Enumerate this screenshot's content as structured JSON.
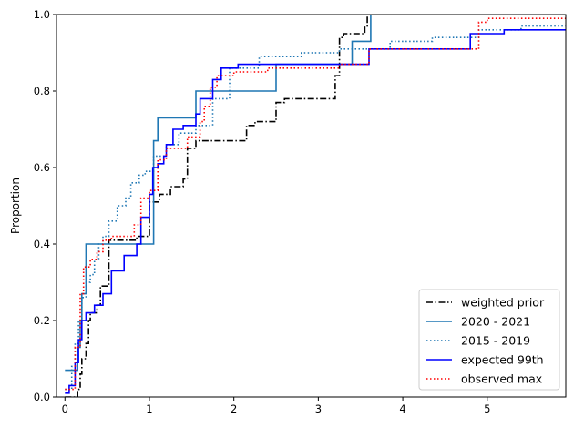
{
  "chart_data": {
    "type": "line",
    "ylabel": "Proportion",
    "xlabel": "",
    "xlim": [
      -0.1,
      5.93
    ],
    "ylim": [
      0,
      1
    ],
    "x_ticks": [
      0,
      1,
      2,
      3,
      4,
      5
    ],
    "y_ticks": [
      0.0,
      0.2,
      0.4,
      0.6,
      0.8,
      1.0
    ],
    "grid": false,
    "legend_position": "lower-right",
    "series": [
      {
        "name": "weighted prior",
        "color": "#000000",
        "dash": "dashdot",
        "steps": [
          [
            0.0,
            0.0
          ],
          [
            0.15,
            0.02
          ],
          [
            0.18,
            0.06
          ],
          [
            0.2,
            0.1
          ],
          [
            0.25,
            0.14
          ],
          [
            0.28,
            0.2
          ],
          [
            0.3,
            0.22
          ],
          [
            0.38,
            0.24
          ],
          [
            0.42,
            0.29
          ],
          [
            0.52,
            0.33
          ],
          [
            0.52,
            0.41
          ],
          [
            0.62,
            0.41
          ],
          [
            0.85,
            0.42
          ],
          [
            1.0,
            0.51
          ],
          [
            1.12,
            0.53
          ],
          [
            1.25,
            0.55
          ],
          [
            1.4,
            0.57
          ],
          [
            1.45,
            0.65
          ],
          [
            1.55,
            0.67
          ],
          [
            2.15,
            0.71
          ],
          [
            2.25,
            0.72
          ],
          [
            2.5,
            0.77
          ],
          [
            2.6,
            0.78
          ],
          [
            3.2,
            0.84
          ],
          [
            3.25,
            0.94
          ],
          [
            3.3,
            0.95
          ],
          [
            3.55,
            0.97
          ],
          [
            3.58,
            1.0
          ]
        ],
        "end_x": 3.58
      },
      {
        "name": "2020 - 2021",
        "color": "#1f77b4",
        "dash": "solid",
        "steps": [
          [
            0.0,
            0.07
          ],
          [
            0.15,
            0.13
          ],
          [
            0.18,
            0.2
          ],
          [
            0.2,
            0.27
          ],
          [
            0.25,
            0.4
          ],
          [
            1.05,
            0.67
          ],
          [
            1.1,
            0.73
          ],
          [
            1.55,
            0.8
          ],
          [
            2.5,
            0.87
          ],
          [
            3.4,
            0.93
          ],
          [
            3.62,
            1.0
          ]
        ],
        "end_x": 3.62
      },
      {
        "name": "2015 - 2019",
        "color": "#1f77b4",
        "dash": "dotted",
        "steps": [
          [
            0.0,
            0.02
          ],
          [
            0.08,
            0.08
          ],
          [
            0.12,
            0.14
          ],
          [
            0.16,
            0.2
          ],
          [
            0.2,
            0.26
          ],
          [
            0.25,
            0.3
          ],
          [
            0.3,
            0.32
          ],
          [
            0.35,
            0.36
          ],
          [
            0.4,
            0.4
          ],
          [
            0.45,
            0.42
          ],
          [
            0.52,
            0.46
          ],
          [
            0.62,
            0.5
          ],
          [
            0.72,
            0.52
          ],
          [
            0.78,
            0.56
          ],
          [
            0.88,
            0.58
          ],
          [
            0.95,
            0.59
          ],
          [
            1.05,
            0.63
          ],
          [
            1.2,
            0.66
          ],
          [
            1.35,
            0.69
          ],
          [
            1.55,
            0.71
          ],
          [
            1.75,
            0.78
          ],
          [
            1.95,
            0.86
          ],
          [
            2.3,
            0.89
          ],
          [
            2.8,
            0.9
          ],
          [
            3.25,
            0.91
          ],
          [
            3.85,
            0.93
          ],
          [
            4.35,
            0.94
          ],
          [
            4.9,
            0.96
          ],
          [
            5.4,
            0.97
          ],
          [
            5.93,
            0.97
          ]
        ],
        "end_x": 5.93
      },
      {
        "name": "expected 99th",
        "color": "#0000ff",
        "dash": "solid",
        "steps": [
          [
            0.0,
            0.01
          ],
          [
            0.05,
            0.03
          ],
          [
            0.12,
            0.09
          ],
          [
            0.16,
            0.15
          ],
          [
            0.2,
            0.2
          ],
          [
            0.25,
            0.22
          ],
          [
            0.35,
            0.24
          ],
          [
            0.45,
            0.27
          ],
          [
            0.55,
            0.33
          ],
          [
            0.7,
            0.37
          ],
          [
            0.85,
            0.4
          ],
          [
            0.9,
            0.47
          ],
          [
            1.0,
            0.53
          ],
          [
            1.04,
            0.6
          ],
          [
            1.1,
            0.61
          ],
          [
            1.17,
            0.63
          ],
          [
            1.2,
            0.66
          ],
          [
            1.28,
            0.7
          ],
          [
            1.4,
            0.71
          ],
          [
            1.55,
            0.74
          ],
          [
            1.6,
            0.78
          ],
          [
            1.75,
            0.83
          ],
          [
            1.85,
            0.86
          ],
          [
            2.05,
            0.87
          ],
          [
            2.5,
            0.87
          ],
          [
            3.6,
            0.91
          ],
          [
            4.8,
            0.95
          ],
          [
            5.2,
            0.96
          ],
          [
            5.93,
            0.96
          ]
        ],
        "end_x": 5.93
      },
      {
        "name": "observed max",
        "color": "#ff0000",
        "dash": "dotted",
        "steps": [
          [
            0.0,
            0.02
          ],
          [
            0.12,
            0.13
          ],
          [
            0.18,
            0.27
          ],
          [
            0.22,
            0.34
          ],
          [
            0.3,
            0.36
          ],
          [
            0.38,
            0.38
          ],
          [
            0.45,
            0.41
          ],
          [
            0.55,
            0.42
          ],
          [
            0.82,
            0.45
          ],
          [
            0.9,
            0.52
          ],
          [
            1.0,
            0.54
          ],
          [
            1.1,
            0.62
          ],
          [
            1.2,
            0.65
          ],
          [
            1.45,
            0.68
          ],
          [
            1.6,
            0.72
          ],
          [
            1.65,
            0.76
          ],
          [
            1.72,
            0.81
          ],
          [
            1.8,
            0.84
          ],
          [
            2.0,
            0.85
          ],
          [
            2.4,
            0.86
          ],
          [
            3.25,
            0.87
          ],
          [
            3.6,
            0.91
          ],
          [
            4.9,
            0.98
          ],
          [
            5.0,
            0.99
          ],
          [
            5.93,
            0.99
          ]
        ],
        "end_x": 5.93
      }
    ]
  }
}
